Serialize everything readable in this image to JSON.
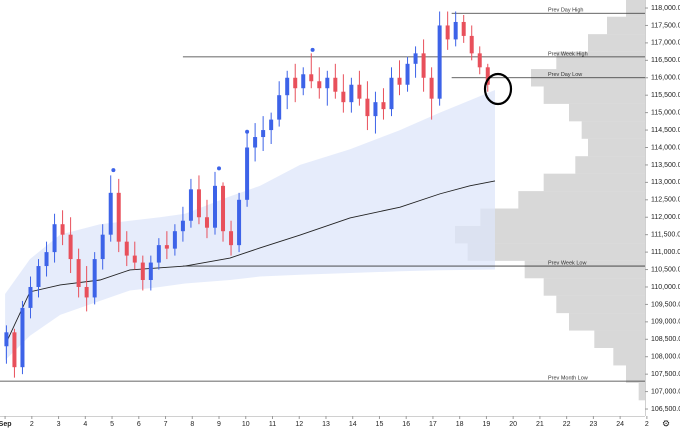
{
  "chart_data": {
    "type": "candlestick",
    "xlim": [
      0.81,
      24.93
    ],
    "ylim": [
      106300,
      118230
    ],
    "xticks": [
      {
        "value": 1,
        "label": "Sep"
      },
      2,
      3,
      4,
      5,
      6,
      7,
      8,
      9,
      10,
      11,
      12,
      13,
      14,
      15,
      16,
      17,
      18,
      19,
      20,
      21,
      22,
      23,
      24,
      {
        "value": 25,
        "label": "2"
      }
    ],
    "yticks": [
      {
        "value": 106500,
        "label": "106,500.0"
      },
      {
        "value": 107000,
        "label": "107,000.0"
      },
      {
        "value": 107500,
        "label": "107,500.0"
      },
      {
        "value": 108000,
        "label": "108,000.0"
      },
      {
        "value": 108500,
        "label": "108,500.0"
      },
      {
        "value": 109000,
        "label": "109,000.0"
      },
      {
        "value": 109500,
        "label": "109,500.0"
      },
      {
        "value": 110000,
        "label": "110,000.0"
      },
      {
        "value": 110500,
        "label": "110,500.0"
      },
      {
        "value": 111000,
        "label": "111,000.0"
      },
      {
        "value": 111500,
        "label": "111,500.0"
      },
      {
        "value": 112000,
        "label": "112,000.0"
      },
      {
        "value": 112500,
        "label": "112,500.0"
      },
      {
        "value": 113000,
        "label": "113,000.0"
      },
      {
        "value": 113500,
        "label": "113,500.0"
      },
      {
        "value": 114000,
        "label": "114,000.0"
      },
      {
        "value": 114500,
        "label": "114,500.0"
      },
      {
        "value": 115000,
        "label": "115,000.0"
      },
      {
        "value": 115500,
        "label": "115,500.0"
      },
      {
        "value": 116000,
        "label": "116,000.0"
      },
      {
        "value": 116500,
        "label": "116,500.0"
      },
      {
        "value": 117000,
        "label": "117,000.0"
      },
      {
        "value": 117500,
        "label": "117,500.0"
      },
      {
        "value": 118000,
        "label": "118,000.0"
      }
    ],
    "up_color": "#3d63e8",
    "down_color": "#e8505b",
    "x": [
      1.05,
      1.35,
      1.65,
      1.95,
      2.25,
      2.55,
      2.85,
      3.15,
      3.45,
      3.75,
      4.05,
      4.35,
      4.65,
      4.95,
      5.25,
      5.55,
      5.85,
      6.15,
      6.45,
      6.75,
      7.05,
      7.35,
      7.65,
      7.95,
      8.25,
      8.55,
      8.85,
      9.15,
      9.45,
      9.75,
      10.05,
      10.35,
      10.65,
      10.95,
      11.25,
      11.55,
      11.85,
      12.15,
      12.45,
      12.75,
      13.05,
      13.35,
      13.65,
      13.95,
      14.25,
      14.55,
      14.85,
      15.15,
      15.45,
      15.75,
      16.05,
      16.35,
      16.65,
      16.95,
      17.25,
      17.55,
      17.85,
      18.15,
      18.45,
      18.75,
      19.05
    ],
    "open": [
      108300,
      108700,
      107700,
      109400,
      110000,
      110600,
      111000,
      111800,
      111500,
      110800,
      110000,
      109700,
      110800,
      111500,
      112700,
      111300,
      110900,
      110700,
      110200,
      110700,
      111200,
      111100,
      111600,
      111900,
      112800,
      112000,
      111700,
      112900,
      111600,
      111200,
      112500,
      114000,
      114300,
      114500,
      114800,
      115500,
      116000,
      115700,
      116100,
      115900,
      115700,
      116000,
      115600,
      115300,
      115800,
      115400,
      114900,
      115300,
      115100,
      116000,
      115800,
      116400,
      116700,
      116000,
      115400,
      117500,
      117100,
      117600,
      117200,
      116700,
      116300
    ],
    "high": [
      108900,
      108800,
      109600,
      110300,
      110800,
      111300,
      112100,
      112200,
      112000,
      111100,
      110600,
      111000,
      111800,
      113200,
      113100,
      111600,
      111300,
      110900,
      110900,
      111400,
      111600,
      111800,
      112300,
      113100,
      113200,
      112500,
      113300,
      113000,
      111900,
      112700,
      114400,
      114700,
      114900,
      115000,
      115900,
      116200,
      116400,
      116300,
      116700,
      116300,
      116200,
      116400,
      116100,
      116000,
      116200,
      115900,
      115600,
      115700,
      116300,
      116500,
      116600,
      116900,
      117100,
      116300,
      117900,
      117900,
      117900,
      117800,
      117500,
      116900,
      116400
    ],
    "low": [
      107800,
      107400,
      107500,
      109100,
      109700,
      110300,
      110700,
      111200,
      110400,
      109700,
      109300,
      109500,
      110500,
      111300,
      111000,
      110600,
      110500,
      109900,
      109900,
      110500,
      110800,
      110900,
      111300,
      111700,
      111800,
      111400,
      111500,
      111300,
      110900,
      111000,
      112300,
      113600,
      113900,
      114100,
      114600,
      115100,
      115300,
      115500,
      115700,
      115400,
      115200,
      115400,
      115000,
      115000,
      115200,
      114500,
      114400,
      114800,
      114900,
      115500,
      115600,
      116000,
      115600,
      114800,
      115200,
      116800,
      116900,
      117000,
      116500,
      116100,
      115600
    ],
    "close": [
      108700,
      107700,
      109400,
      110000,
      110600,
      111000,
      111800,
      111500,
      110800,
      110000,
      109700,
      110800,
      111500,
      112700,
      111300,
      110900,
      110700,
      110200,
      110700,
      111200,
      111100,
      111600,
      111900,
      112800,
      112000,
      111700,
      112900,
      111600,
      111200,
      112500,
      114000,
      114300,
      114500,
      114800,
      115500,
      116000,
      115700,
      116100,
      115900,
      115700,
      116000,
      115600,
      115300,
      115800,
      115400,
      114900,
      115300,
      115100,
      116000,
      115800,
      116400,
      116700,
      116000,
      115400,
      117500,
      117100,
      117600,
      117200,
      116700,
      116300,
      115800
    ],
    "vwap": {
      "color": "#222222",
      "x": [
        1,
        1.93,
        3.06,
        4.55,
        5.67,
        6.79,
        7.73,
        9.41,
        10.53,
        12.03,
        13.9,
        15.77,
        17.26,
        18.38,
        19.32
      ],
      "values": [
        108330,
        109860,
        110060,
        110200,
        110490,
        110550,
        110600,
        110830,
        111120,
        111490,
        111980,
        112290,
        112670,
        112900,
        113040
      ],
      "band_upper": [
        109800,
        110800,
        111500,
        111800,
        111900,
        112000,
        112100,
        112600,
        112900,
        113500,
        113950,
        114500,
        115000,
        115350,
        115650
      ],
      "band_lower": [
        107900,
        108600,
        109200,
        109600,
        109900,
        110000,
        110100,
        110200,
        110300,
        110350,
        110400,
        110450,
        110480,
        110490,
        110500
      ],
      "band_color": "#dde6fa"
    },
    "levels": [
      {
        "label": "Prev Day High",
        "value": 117850,
        "start": 17.7
      },
      {
        "label": "Prev Week High",
        "value": 116600,
        "start": 7.65
      },
      {
        "label": "Prev Day Low",
        "value": 116000,
        "start": 17.7
      },
      {
        "label": "Prev Week Low",
        "value": 110600,
        "start": 7.65
      },
      {
        "label": "Prev Month Low",
        "value": 107300,
        "start": 0.81
      }
    ],
    "signals": {
      "color": "#3d63e8",
      "x": [
        5.05,
        9.0,
        10.05,
        12.5
      ],
      "values": [
        113350,
        113400,
        114450,
        116800
      ]
    },
    "volume_profile": {
      "color": "#b8b8b8",
      "prices": [
        107000,
        107500,
        108000,
        108500,
        109000,
        109500,
        110000,
        110500,
        111000,
        111500,
        112000,
        112500,
        113000,
        113500,
        114000,
        114500,
        115000,
        115500,
        116000,
        116500,
        117000,
        117500,
        118000
      ],
      "values": [
        5,
        15,
        25,
        40,
        60,
        70,
        80,
        95,
        140,
        150,
        130,
        100,
        80,
        55,
        45,
        50,
        60,
        80,
        90,
        70,
        45,
        30,
        15
      ]
    }
  }
}
